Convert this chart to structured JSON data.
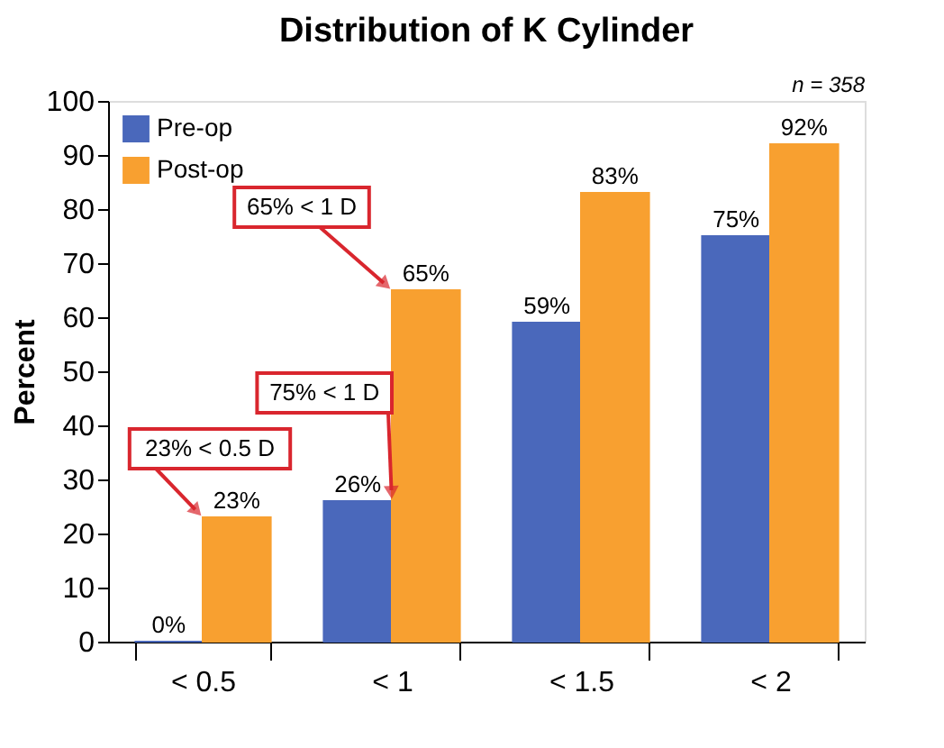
{
  "chart_data": {
    "type": "bar",
    "title": "Distribution of K Cylinder",
    "ylabel": "Percent",
    "categories": [
      "< 0.5",
      "< 1",
      "< 1.5",
      "< 2"
    ],
    "series": [
      {
        "name": "Pre-op",
        "color": "#4a68bb",
        "values": [
          0,
          26,
          59,
          75
        ],
        "value_labels": [
          "0%",
          "26%",
          "59%",
          "75%"
        ]
      },
      {
        "name": "Post-op",
        "color": "#f8a030",
        "values": [
          23,
          65,
          83,
          92
        ],
        "value_labels": [
          "23%",
          "65%",
          "83%",
          "92%"
        ]
      }
    ],
    "ylim": [
      0,
      100
    ],
    "yticks": [
      0,
      10,
      20,
      30,
      40,
      50,
      60,
      70,
      80,
      90,
      100
    ],
    "grid": false,
    "legend": "top left",
    "annotations": [
      "n = 358",
      {
        "text": "23% < 0.5 D",
        "x": "< 0.5",
        "y": 23
      },
      {
        "text": "75% < 1 D",
        "x": "< 1",
        "y": 26
      },
      {
        "text": "65% < 1 D",
        "x": "< 1",
        "y": 65
      }
    ]
  }
}
